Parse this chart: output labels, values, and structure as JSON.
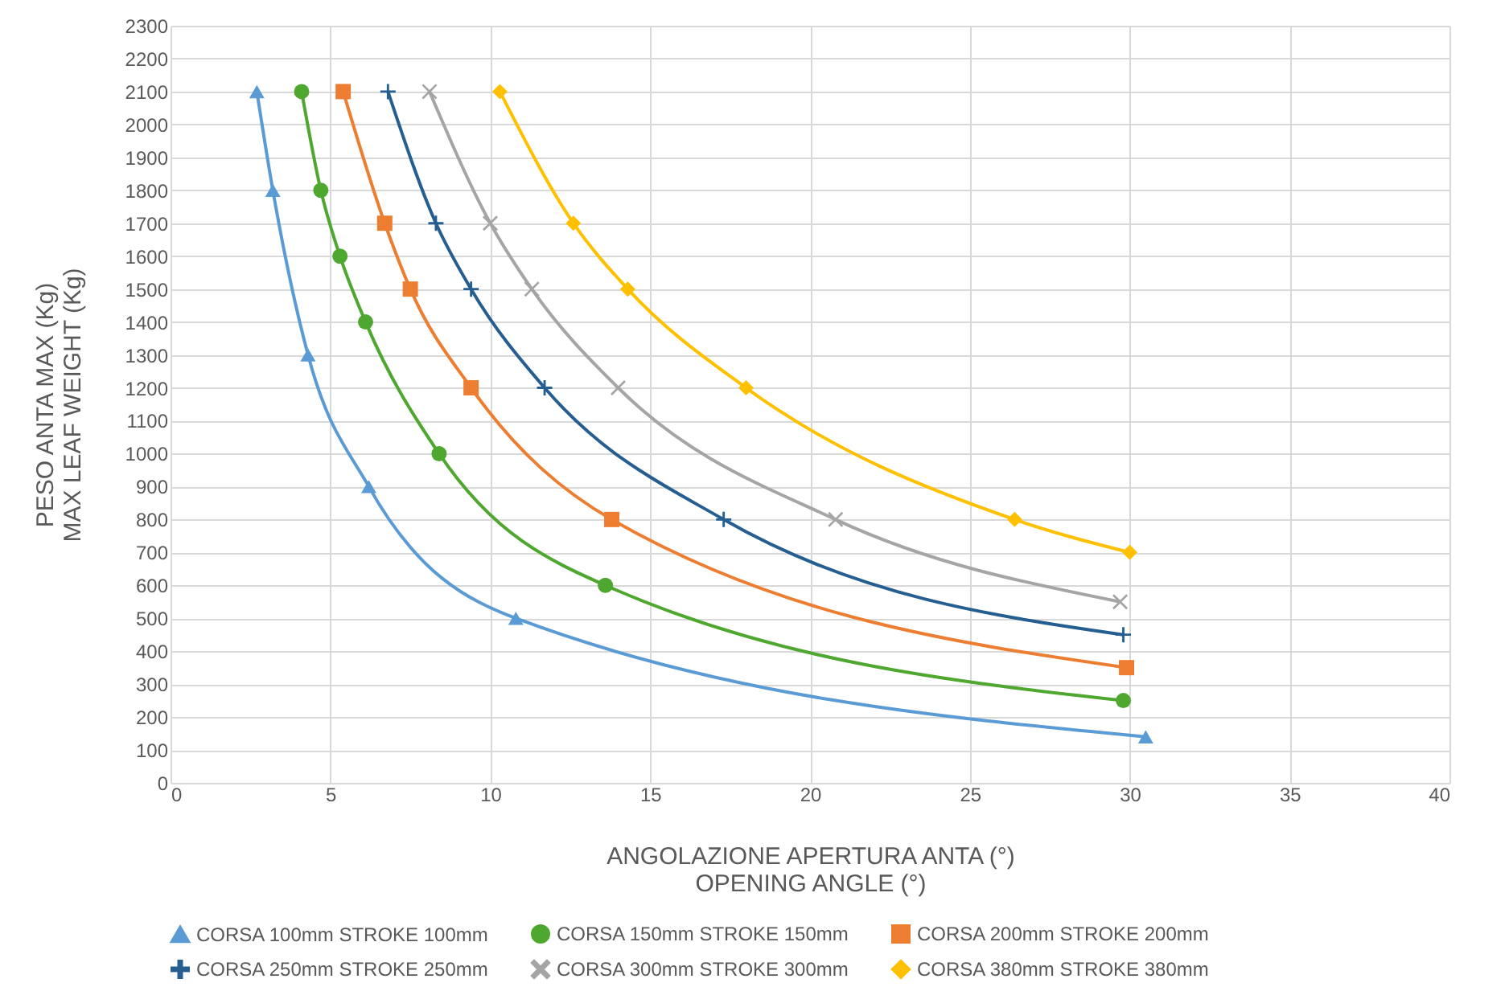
{
  "chart_data": {
    "type": "line",
    "xlabel": "ANGOLAZIONE APERTURA ANTA (°)\nOPENING ANGLE (°)",
    "ylabel": "PESO ANTA MAX (Kg)\nMAX LEAF WEIGHT (Kg)",
    "xlim": [
      0,
      40
    ],
    "xticks": [
      0,
      5,
      10,
      15,
      20,
      25,
      30,
      35,
      40
    ],
    "ylim": [
      0,
      2300
    ],
    "yticks": [
      0,
      100,
      200,
      300,
      400,
      500,
      600,
      700,
      800,
      900,
      1000,
      1100,
      1200,
      1300,
      1400,
      1500,
      1600,
      1700,
      1800,
      1900,
      2000,
      2100,
      2200,
      2300
    ],
    "grid": true,
    "legend": "bottom",
    "line_style": "solid",
    "series": [
      {
        "name": "CORSA 100mm STROKE 100mm",
        "color": "#5b9bd5",
        "marker": "triangle",
        "x": [
          2.7,
          3.2,
          4.3,
          6.2,
          10.8,
          30.5
        ],
        "values": [
          2100,
          1800,
          1300,
          900,
          500,
          140
        ]
      },
      {
        "name": "CORSA 150mm STROKE 150mm",
        "color": "#4ea72e",
        "marker": "circle",
        "x": [
          4.1,
          4.7,
          5.3,
          6.1,
          8.4,
          13.6,
          29.8
        ],
        "values": [
          2100,
          1800,
          1600,
          1400,
          1000,
          600,
          250
        ]
      },
      {
        "name": "CORSA 200mm STROKE 200mm",
        "color": "#ed7d31",
        "marker": "square",
        "x": [
          5.4,
          6.7,
          7.5,
          9.4,
          13.8,
          29.9
        ],
        "values": [
          2100,
          1700,
          1500,
          1200,
          800,
          350
        ]
      },
      {
        "name": "CORSA 250mm STROKE 250mm",
        "color": "#255e91",
        "marker": "cross",
        "x": [
          6.8,
          8.3,
          9.4,
          11.7,
          17.3,
          29.8
        ],
        "values": [
          2100,
          1700,
          1500,
          1200,
          800,
          450
        ]
      },
      {
        "name": "CORSA 300mm STROKE 300mm",
        "color": "#a5a5a5",
        "marker": "x",
        "x": [
          8.1,
          10.0,
          11.3,
          14.0,
          20.8,
          29.7
        ],
        "values": [
          2100,
          1700,
          1500,
          1200,
          800,
          550
        ]
      },
      {
        "name": "CORSA 380mm STROKE 380mm",
        "color": "#ffc000",
        "marker": "diamond",
        "x": [
          10.3,
          12.6,
          14.3,
          18.0,
          26.4,
          30.0
        ],
        "values": [
          2100,
          1700,
          1500,
          1200,
          800,
          700
        ]
      }
    ]
  }
}
